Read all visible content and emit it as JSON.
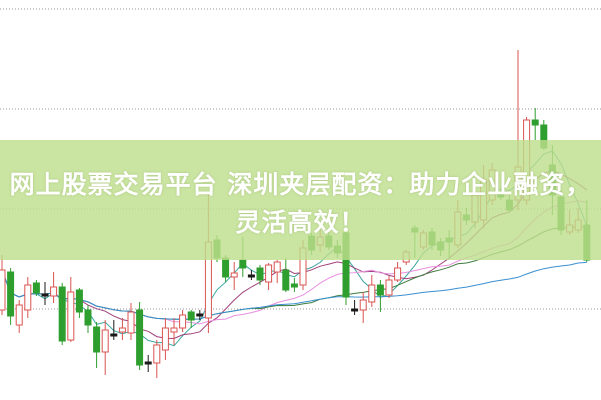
{
  "title_lines": [
    "网上股票交易平台 深圳夹层配资：助力企业融资，",
    "灵活高效！"
  ],
  "colors": {
    "up": "#d9534f",
    "down": "#2e9e2e",
    "doji": "#1a1a1a",
    "grid": "#999999",
    "banner": "#bede8c",
    "ma_lines": [
      "#3aa6a0",
      "#a0407a",
      "#e890e0",
      "#3d7d3d",
      "#3a8fd0"
    ]
  },
  "chart_data": {
    "type": "candlestick",
    "title": "",
    "xlabel": "",
    "ylabel": "",
    "ylim": [
      0,
      400
    ],
    "grid": true,
    "grid_style": "dotted horizontal",
    "legend": "none",
    "moving_average_windows": [
      5,
      10,
      20,
      30,
      60
    ],
    "ohlc": [
      [
        90,
        145,
        85,
        130
      ],
      [
        128,
        132,
        75,
        84
      ],
      [
        75,
        100,
        67,
        95
      ],
      [
        90,
        123,
        82,
        115
      ],
      [
        117,
        120,
        104,
        107
      ],
      [
        106,
        118,
        95,
        105
      ],
      [
        104,
        128,
        97,
        113
      ],
      [
        113,
        117,
        55,
        59
      ],
      [
        60,
        123,
        58,
        108
      ],
      [
        110,
        112,
        82,
        88
      ],
      [
        90,
        95,
        67,
        75
      ],
      [
        73,
        78,
        32,
        48
      ],
      [
        48,
        80,
        25,
        70
      ],
      [
        65,
        80,
        60,
        66
      ],
      [
        68,
        82,
        60,
        72
      ],
      [
        67,
        97,
        60,
        88
      ],
      [
        90,
        98,
        30,
        35
      ],
      [
        38,
        45,
        28,
        37
      ],
      [
        37,
        60,
        22,
        55
      ],
      [
        50,
        82,
        40,
        72
      ],
      [
        68,
        82,
        55,
        72
      ],
      [
        72,
        90,
        68,
        85
      ],
      [
        88,
        90,
        72,
        80
      ],
      [
        86,
        90,
        80,
        86
      ],
      [
        82,
        208,
        67,
        158
      ],
      [
        160,
        165,
        138,
        142
      ],
      [
        142,
        145,
        118,
        123
      ],
      [
        123,
        138,
        110,
        127
      ],
      [
        140,
        163,
        123,
        132
      ],
      [
        125,
        130,
        120,
        125
      ],
      [
        132,
        135,
        115,
        120
      ],
      [
        118,
        137,
        110,
        135
      ],
      [
        128,
        140,
        117,
        138
      ],
      [
        130,
        142,
        108,
        110
      ],
      [
        116,
        122,
        108,
        113
      ],
      [
        115,
        160,
        110,
        152
      ],
      [
        164,
        167,
        145,
        150
      ],
      [
        155,
        170,
        148,
        163
      ],
      [
        164,
        168,
        150,
        153
      ],
      [
        154,
        160,
        142,
        147
      ],
      [
        167,
        170,
        95,
        103
      ],
      [
        91,
        100,
        85,
        90
      ],
      [
        90,
        108,
        77,
        100
      ],
      [
        98,
        125,
        93,
        115
      ],
      [
        115,
        120,
        88,
        105
      ],
      [
        105,
        124,
        102,
        120
      ],
      [
        120,
        138,
        118,
        132
      ],
      [
        138,
        150,
        135,
        148
      ],
      [
        172,
        175,
        142,
        168
      ],
      [
        153,
        170,
        150,
        167
      ],
      [
        168,
        172,
        150,
        155
      ],
      [
        158,
        162,
        144,
        150
      ],
      [
        162,
        170,
        142,
        158
      ],
      [
        155,
        200,
        152,
        188
      ],
      [
        185,
        192,
        175,
        180
      ],
      [
        178,
        210,
        172,
        205
      ],
      [
        180,
        235,
        172,
        220
      ],
      [
        200,
        237,
        195,
        230
      ],
      [
        207,
        212,
        200,
        203
      ],
      [
        200,
        205,
        188,
        190
      ],
      [
        200,
        350,
        190,
        233
      ],
      [
        200,
        283,
        195,
        280
      ],
      [
        280,
        292,
        260,
        275
      ],
      [
        275,
        280,
        250,
        252
      ],
      [
        235,
        255,
        185,
        205
      ],
      [
        203,
        210,
        165,
        170
      ],
      [
        168,
        190,
        165,
        175
      ],
      [
        170,
        192,
        167,
        180
      ],
      [
        175,
        200,
        138,
        140
      ]
    ]
  }
}
